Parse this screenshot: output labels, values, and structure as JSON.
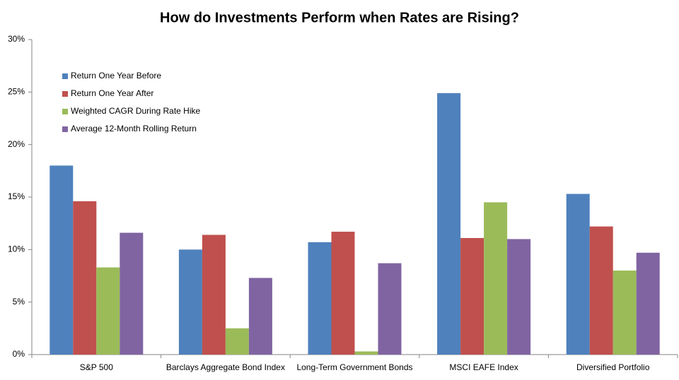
{
  "chart_data": {
    "type": "bar",
    "title": "How do Investments Perform when Rates are Rising?",
    "categories": [
      "S&P 500",
      "Barclays Aggregate Bond Index",
      "Long-Term Government Bonds",
      "MSCI EAFE Index",
      "Diversified Portfolio"
    ],
    "series": [
      {
        "name": "Return One Year Before",
        "color": "#4f81bd",
        "values": [
          18.0,
          10.0,
          10.7,
          24.9,
          15.3
        ]
      },
      {
        "name": "Return One Year After",
        "color": "#c0504d",
        "values": [
          14.6,
          11.4,
          11.7,
          11.1,
          12.2
        ]
      },
      {
        "name": "Weighted CAGR During Rate Hike",
        "color": "#9bbb59",
        "values": [
          8.3,
          2.5,
          0.3,
          14.5,
          8.0
        ]
      },
      {
        "name": "Average 12-Month Rolling Return",
        "color": "#8064a2",
        "values": [
          11.6,
          7.3,
          8.7,
          11.0,
          9.7
        ]
      }
    ],
    "ylim": [
      0,
      30
    ],
    "yticks": [
      {
        "value": 0,
        "label": "0%"
      },
      {
        "value": 5,
        "label": "5%"
      },
      {
        "value": 10,
        "label": "10%"
      },
      {
        "value": 15,
        "label": "15%"
      },
      {
        "value": 20,
        "label": "20%"
      },
      {
        "value": 25,
        "label": "25%"
      },
      {
        "value": 30,
        "label": "30%"
      }
    ],
    "grid": false,
    "legend": "top-left"
  }
}
